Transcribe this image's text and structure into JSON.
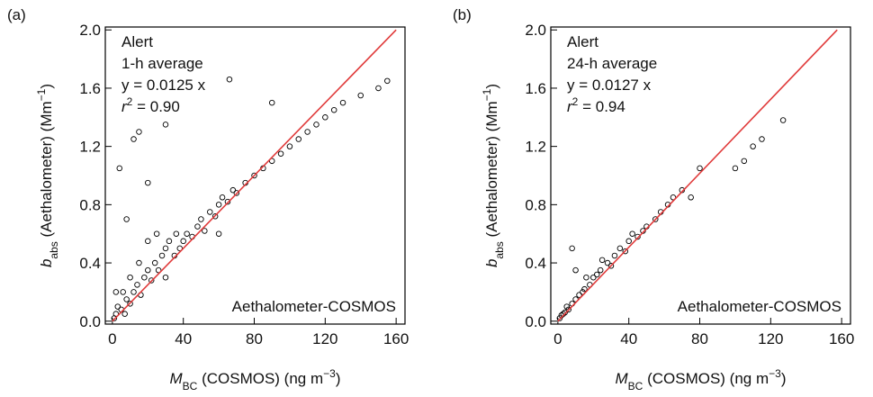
{
  "chart_data": [
    {
      "type": "scatter",
      "panel": "(a)",
      "annotations": [
        [
          {
            "text": "Alert"
          }
        ],
        [
          {
            "text": "1-h average"
          }
        ],
        [
          {
            "text": "y = 0.0125 x"
          }
        ],
        [
          {
            "text": "r",
            "style": "italic"
          },
          {
            "text": "2",
            "style": "sup"
          },
          {
            "text": " = 0.90"
          }
        ]
      ],
      "source_label": "Aethalometer-COSMOS",
      "xlabel": [
        {
          "text": "M",
          "style": "italic"
        },
        {
          "text": "BC",
          "style": "sub"
        },
        {
          "text": " (COSMOS) (ng m"
        },
        {
          "text": "−3",
          "style": "sup"
        },
        {
          "text": ")"
        }
      ],
      "ylabel": [
        {
          "text": "b",
          "style": "italic"
        },
        {
          "text": "abs",
          "style": "sub"
        },
        {
          "text": " (Aethalometer) (Mm"
        },
        {
          "text": "−1",
          "style": "sup"
        },
        {
          "text": ")"
        }
      ],
      "x": [
        2,
        3,
        5,
        6,
        8,
        10,
        10,
        12,
        14,
        15,
        16,
        18,
        20,
        20,
        22,
        24,
        25,
        26,
        28,
        30,
        30,
        32,
        35,
        36,
        38,
        40,
        42,
        45,
        48,
        50,
        52,
        55,
        58,
        60,
        62,
        65,
        68,
        70,
        75,
        80,
        85,
        90,
        95,
        100,
        105,
        110,
        115,
        120,
        125,
        130,
        140,
        150,
        155,
        4,
        12,
        15,
        20,
        8,
        60,
        90,
        2,
        1,
        7,
        66,
        30
      ],
      "values": [
        0.05,
        0.1,
        0.08,
        0.2,
        0.15,
        0.12,
        0.3,
        0.2,
        0.25,
        0.4,
        0.18,
        0.3,
        0.35,
        0.55,
        0.28,
        0.4,
        0.6,
        0.35,
        0.45,
        0.5,
        0.3,
        0.55,
        0.45,
        0.6,
        0.5,
        0.55,
        0.6,
        0.58,
        0.65,
        0.7,
        0.62,
        0.75,
        0.72,
        0.8,
        0.85,
        0.82,
        0.9,
        0.88,
        0.95,
        1.0,
        1.05,
        1.1,
        1.15,
        1.2,
        1.25,
        1.3,
        1.35,
        1.4,
        1.45,
        1.5,
        1.55,
        1.6,
        1.65,
        1.05,
        1.25,
        1.3,
        0.95,
        0.7,
        0.6,
        1.5,
        0.2,
        0.02,
        0.05,
        1.66,
        1.35
      ],
      "marker_color": "#000000",
      "fit_line": {
        "x": [
          0,
          160
        ],
        "y": [
          0,
          2.0
        ],
        "color": "#e03a3a"
      },
      "xlim": [
        -4,
        165
      ],
      "ylim": [
        -0.02,
        2.02
      ],
      "xticks": [
        0,
        40,
        80,
        120,
        160
      ],
      "yticks": [
        {
          "value": 0,
          "label": "0.0"
        },
        0.4,
        0.8,
        1.2,
        1.6,
        {
          "value": 2,
          "label": "2.0"
        }
      ]
    },
    {
      "type": "scatter",
      "panel": "(b)",
      "annotations": [
        [
          {
            "text": "Alert"
          }
        ],
        [
          {
            "text": "24-h average"
          }
        ],
        [
          {
            "text": "y = 0.0127 x"
          }
        ],
        [
          {
            "text": "r",
            "style": "italic"
          },
          {
            "text": "2",
            "style": "sup"
          },
          {
            "text": " = 0.94"
          }
        ]
      ],
      "source_label": "Aethalometer-COSMOS",
      "xlabel": [
        {
          "text": "M",
          "style": "italic"
        },
        {
          "text": "BC",
          "style": "sub"
        },
        {
          "text": " (COSMOS) (ng m"
        },
        {
          "text": "−3",
          "style": "sup"
        },
        {
          "text": ")"
        }
      ],
      "ylabel": [
        {
          "text": "b",
          "style": "italic"
        },
        {
          "text": "abs",
          "style": "sub"
        },
        {
          "text": " (Aethalometer) (Mm"
        },
        {
          "text": "−1",
          "style": "sup"
        },
        {
          "text": ")"
        }
      ],
      "x": [
        1,
        2,
        3,
        4,
        5,
        6,
        8,
        8,
        10,
        10,
        12,
        14,
        15,
        16,
        18,
        20,
        22,
        24,
        25,
        28,
        30,
        32,
        35,
        38,
        40,
        42,
        45,
        48,
        50,
        55,
        58,
        62,
        65,
        70,
        75,
        80,
        100,
        105,
        110,
        115,
        127
      ],
      "values": [
        0.02,
        0.04,
        0.05,
        0.06,
        0.1,
        0.08,
        0.12,
        0.5,
        0.15,
        0.35,
        0.18,
        0.2,
        0.22,
        0.3,
        0.25,
        0.3,
        0.32,
        0.35,
        0.42,
        0.4,
        0.38,
        0.45,
        0.5,
        0.48,
        0.55,
        0.6,
        0.58,
        0.62,
        0.65,
        0.7,
        0.75,
        0.8,
        0.85,
        0.9,
        0.85,
        1.05,
        1.05,
        1.1,
        1.2,
        1.25,
        1.38
      ],
      "marker_color": "#000000",
      "fit_line": {
        "x": [
          0,
          157.5
        ],
        "y": [
          0,
          2.0
        ],
        "color": "#e03a3a"
      },
      "xlim": [
        -4,
        165
      ],
      "ylim": [
        -0.02,
        2.02
      ],
      "xticks": [
        0,
        40,
        80,
        120,
        160
      ],
      "yticks": [
        {
          "value": 0,
          "label": "0.0"
        },
        0.4,
        0.8,
        1.2,
        1.6,
        {
          "value": 2,
          "label": "2.0"
        }
      ]
    }
  ]
}
